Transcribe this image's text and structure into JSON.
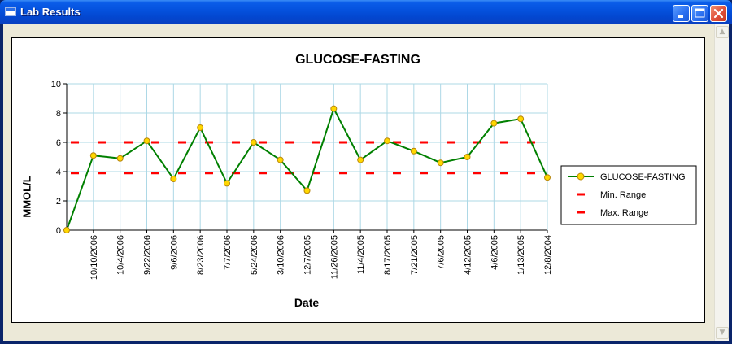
{
  "window": {
    "title": "Lab Results",
    "controls": [
      "minimize-icon",
      "maximize-icon",
      "close-icon"
    ]
  },
  "chart_data": {
    "type": "line",
    "title": "GLUCOSE-FASTING",
    "xlabel": "Date",
    "ylabel": "MMOL/L",
    "ylim": [
      0,
      10
    ],
    "yticks": [
      "0",
      "2",
      "4",
      "6",
      "8",
      "10"
    ],
    "grid": true,
    "legend_position": "right",
    "categories": [
      "",
      "10/10/2006",
      "10/4/2006",
      "9/22/2006",
      "9/6/2006",
      "8/23/2006",
      "7/7/2006",
      "5/24/2006",
      "3/10/2006",
      "12/7/2005",
      "11/26/2005",
      "11/4/2005",
      "8/17/2005",
      "7/21/2005",
      "7/6/2005",
      "4/12/2005",
      "4/6/2005",
      "1/13/2005",
      "12/8/2004"
    ],
    "series": [
      {
        "name": "GLUCOSE-FASTING",
        "color": "#008000",
        "marker": "circle",
        "marker_color": "#ffd700",
        "values": [
          0,
          5.1,
          4.9,
          6.1,
          3.5,
          7.0,
          3.2,
          6.0,
          4.8,
          2.7,
          8.3,
          4.8,
          6.1,
          5.4,
          4.6,
          5.0,
          7.3,
          7.6,
          3.6
        ]
      },
      {
        "name": "Min. Range",
        "color": "#ff0000",
        "style": "dashed",
        "values": [
          3.9,
          3.9,
          3.9,
          3.9,
          3.9,
          3.9,
          3.9,
          3.9,
          3.9,
          3.9,
          3.9,
          3.9,
          3.9,
          3.9,
          3.9,
          3.9,
          3.9,
          3.9,
          3.9
        ]
      },
      {
        "name": "Max. Range",
        "color": "#ff0000",
        "style": "dashed",
        "values": [
          6.0,
          6.0,
          6.0,
          6.0,
          6.0,
          6.0,
          6.0,
          6.0,
          6.0,
          6.0,
          6.0,
          6.0,
          6.0,
          6.0,
          6.0,
          6.0,
          6.0,
          6.0,
          6.0
        ]
      }
    ]
  }
}
